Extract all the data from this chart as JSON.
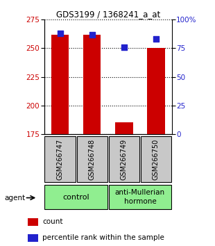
{
  "title": "GDS3199 / 1368241_a_at",
  "samples": [
    "GSM266747",
    "GSM266748",
    "GSM266749",
    "GSM266750"
  ],
  "count_values": [
    262,
    262,
    185,
    250
  ],
  "percentile_values": [
    88,
    87,
    76,
    83
  ],
  "ylim_left": [
    175,
    275
  ],
  "ylim_right": [
    0,
    100
  ],
  "left_ticks": [
    175,
    200,
    225,
    250,
    275
  ],
  "right_ticks": [
    0,
    25,
    50,
    75,
    100
  ],
  "bar_color": "#CC0000",
  "dot_color": "#2222CC",
  "bar_width": 0.55,
  "sample_box_color": "#C8C8C8",
  "group_box_color": "#90EE90",
  "agent_label": "agent",
  "legend_count_label": "count",
  "legend_percentile_label": "percentile rank within the sample",
  "control_label": "control",
  "amh_label": "anti-Mullerian\nhormone"
}
